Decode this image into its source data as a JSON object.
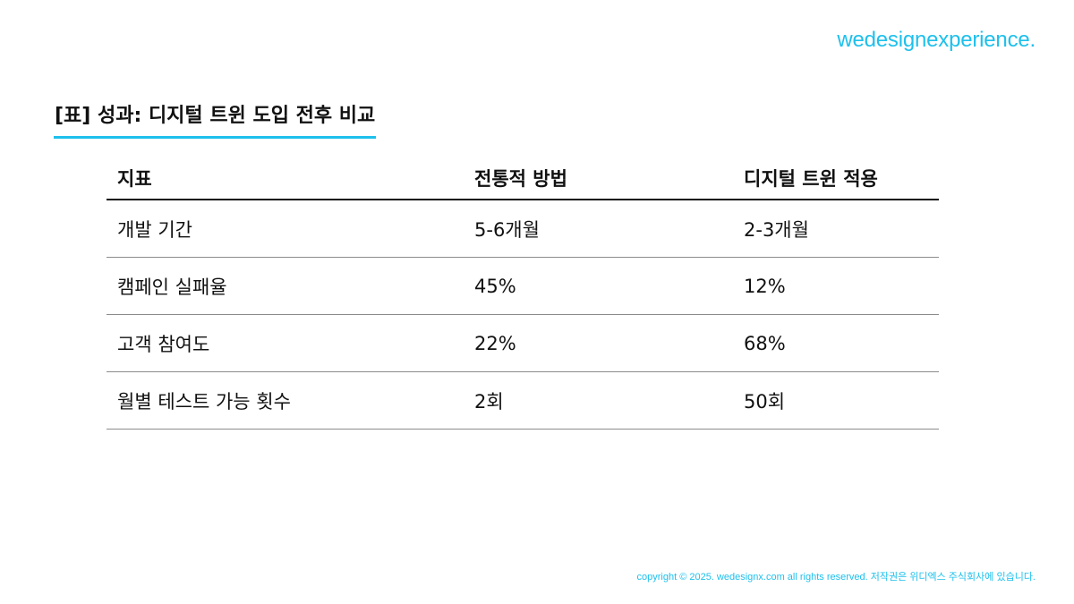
{
  "brand": "wedesignexperience.",
  "title": "[표] 성과: 디지털 트윈 도입 전후 비교",
  "table": {
    "headers": [
      "지표",
      "전통적 방법",
      "디지털 트윈 적용"
    ],
    "rows": [
      [
        "개발 기간",
        "5-6개월",
        "2-3개월"
      ],
      [
        "캠페인 실패율",
        "45%",
        "12%"
      ],
      [
        "고객 참여도",
        "22%",
        "68%"
      ],
      [
        "월별 테스트 가능 횟수",
        "2회",
        "50회"
      ]
    ]
  },
  "footer": "copyright © 2025.  wedesignx.com  all rights reserved. 저작권은 위디엑스 주식회사에 있습니다.",
  "colors": {
    "accent": "#1ec0ec",
    "text": "#111111",
    "rule": "#8c8c8c"
  }
}
